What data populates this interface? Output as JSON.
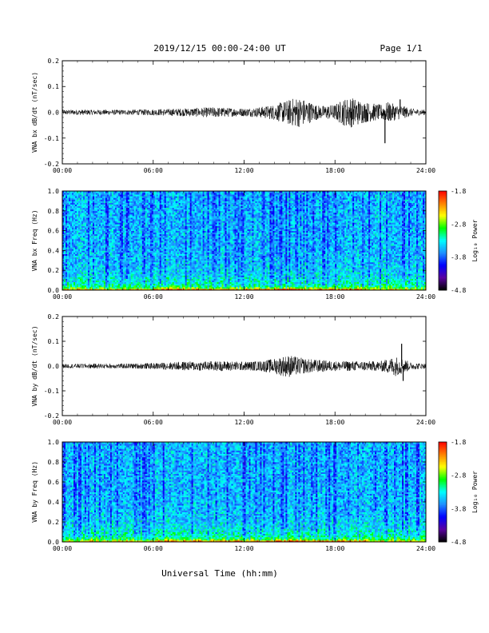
{
  "header": {
    "title": "2019/12/15  00:00-24:00 UT",
    "page": "Page 1/1"
  },
  "xaxis": {
    "label": "Universal Time (hh:mm)",
    "ticks": [
      "00:00",
      "06:00",
      "12:00",
      "18:00",
      "24:00"
    ],
    "range_hours": [
      0,
      24
    ]
  },
  "colors": {
    "trace": "#000000",
    "colormap": [
      "#000000",
      "#5a00a0",
      "#0000ff",
      "#1e90ff",
      "#00ffff",
      "#00ff00",
      "#ffff00",
      "#ff8000",
      "#ff0000"
    ]
  },
  "colorbar": {
    "label": "Log₁₀ Power",
    "ticks": [
      "-1.8",
      "-2.8",
      "-3.8",
      "-4.8"
    ],
    "range": [
      -4.8,
      -1.8
    ]
  },
  "chart_data": [
    {
      "type": "line",
      "id": "bx-dbdt",
      "ylabel": "VNA bx dB/dt (nT/sec)",
      "ylim": [
        -0.2,
        0.2
      ],
      "yticks": [
        "0.2",
        "0.1",
        "0.0",
        "-0.1",
        "-0.2"
      ],
      "envelope": {
        "x_hours": [
          0,
          2,
          4,
          6,
          8,
          10,
          12,
          13,
          14,
          14.5,
          15,
          15.5,
          16,
          17,
          18,
          18.5,
          19,
          19.5,
          20,
          21,
          21.5,
          22,
          22.5,
          23,
          24
        ],
        "amplitude": [
          0.01,
          0.01,
          0.01,
          0.012,
          0.015,
          0.02,
          0.015,
          0.02,
          0.03,
          0.04,
          0.05,
          0.06,
          0.05,
          0.025,
          0.03,
          0.05,
          0.06,
          0.05,
          0.04,
          0.03,
          0.04,
          0.03,
          0.025,
          0.015,
          0.01
        ]
      },
      "spikes": [
        {
          "x_hours": 21.3,
          "y": -0.12
        },
        {
          "x_hours": 22.3,
          "y": 0.05
        }
      ]
    },
    {
      "type": "heatmap",
      "id": "bx-freq",
      "ylabel": "VNA bx Freq (Hz)",
      "ylim": [
        0.0,
        1.0
      ],
      "yticks": [
        "1.0",
        "0.8",
        "0.6",
        "0.4",
        "0.2",
        "0.0"
      ],
      "zlabel": "Log₁₀ Power",
      "zlim": [
        -4.8,
        -1.8
      ]
    },
    {
      "type": "line",
      "id": "by-dbdt",
      "ylabel": "VNA by dB/dt (nT/sec)",
      "ylim": [
        -0.2,
        0.2
      ],
      "yticks": [
        "0.2",
        "0.1",
        "0.0",
        "-0.1",
        "-0.2"
      ],
      "envelope": {
        "x_hours": [
          0,
          2,
          4,
          6,
          8,
          10,
          11,
          12,
          13,
          14,
          14.5,
          15,
          16,
          17,
          18,
          19,
          20,
          21,
          21.5,
          22,
          22.5,
          23,
          24
        ],
        "amplitude": [
          0.008,
          0.01,
          0.01,
          0.012,
          0.018,
          0.02,
          0.02,
          0.018,
          0.02,
          0.03,
          0.04,
          0.045,
          0.03,
          0.025,
          0.02,
          0.02,
          0.02,
          0.02,
          0.03,
          0.04,
          0.03,
          0.015,
          0.01
        ]
      },
      "spikes": [
        {
          "x_hours": 22.4,
          "y": 0.09
        },
        {
          "x_hours": 22.5,
          "y": -0.06
        }
      ]
    },
    {
      "type": "heatmap",
      "id": "by-freq",
      "ylabel": "VNA by Freq (Hz)",
      "ylim": [
        0.0,
        1.0
      ],
      "yticks": [
        "1.0",
        "0.8",
        "0.6",
        "0.4",
        "0.2",
        "0.0"
      ],
      "zlabel": "Log₁₀ Power",
      "zlim": [
        -4.8,
        -1.8
      ]
    }
  ]
}
